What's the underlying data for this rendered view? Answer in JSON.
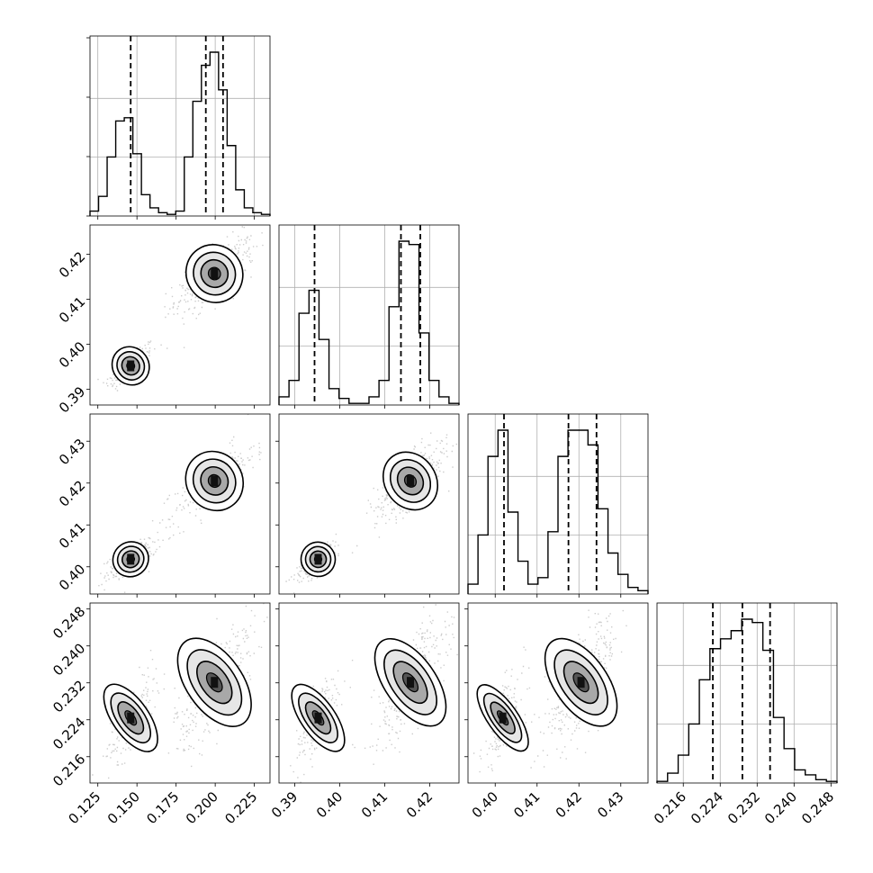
{
  "chart_data": {
    "type": "corner",
    "grid": true,
    "ticks": {
      "p1": [
        "0.125",
        "0.150",
        "0.175",
        "0.200",
        "0.225"
      ],
      "p2": [
        "0.39",
        "0.40",
        "0.41",
        "0.42"
      ],
      "p3": [
        "0.40",
        "0.41",
        "0.42",
        "0.43"
      ],
      "p4": [
        "0.216",
        "0.224",
        "0.232",
        "0.240",
        "0.248"
      ]
    },
    "parameters": [
      {
        "range": [
          0.12,
          0.235
        ],
        "tick_values": [
          0.125,
          0.15,
          0.175,
          0.2,
          0.225
        ],
        "quantiles": [
          0.146,
          0.194,
          0.205
        ],
        "histogram": [
          0.03,
          0.12,
          0.36,
          0.58,
          0.6,
          0.38,
          0.13,
          0.05,
          0.02,
          0.01,
          0.03,
          0.36,
          0.7,
          0.92,
          1.0,
          0.77,
          0.43,
          0.16,
          0.05,
          0.02,
          0.01
        ]
      },
      {
        "range": [
          0.3865,
          0.4265
        ],
        "tick_values": [
          0.39,
          0.4,
          0.41,
          0.42
        ],
        "quantiles": [
          0.3944,
          0.4136,
          0.4179
        ],
        "histogram": [
          0.05,
          0.15,
          0.56,
          0.7,
          0.4,
          0.1,
          0.04,
          0.01,
          0.01,
          0.05,
          0.15,
          0.6,
          1.0,
          0.98,
          0.44,
          0.15,
          0.05,
          0.01
        ]
      },
      {
        "range": [
          0.3935,
          0.4365
        ],
        "tick_values": [
          0.4,
          0.41,
          0.42,
          0.43
        ],
        "quantiles": [
          0.4021,
          0.4175,
          0.4242
        ],
        "histogram": [
          0.06,
          0.36,
          0.84,
          1.0,
          0.5,
          0.2,
          0.06,
          0.1,
          0.38,
          0.84,
          1.0,
          1.0,
          0.91,
          0.52,
          0.25,
          0.12,
          0.04,
          0.02
        ]
      },
      {
        "range": [
          0.2103,
          0.2493
        ],
        "tick_values": [
          0.216,
          0.224,
          0.232,
          0.24,
          0.248
        ],
        "quantiles": [
          0.2224,
          0.2288,
          0.2348
        ],
        "histogram": [
          0.01,
          0.06,
          0.17,
          0.36,
          0.63,
          0.82,
          0.88,
          0.93,
          1.0,
          0.98,
          0.81,
          0.4,
          0.21,
          0.08,
          0.05,
          0.02,
          0.01
        ]
      }
    ],
    "clusters": [
      {
        "center": [
          0.146,
          0.3952,
          0.4018,
          0.2244
        ],
        "sd": [
          0.0055,
          0.0018,
          0.0017,
          0.0035
        ],
        "weight": 0.33
      },
      {
        "center": [
          0.1995,
          0.4157,
          0.4205,
          0.2321
        ],
        "sd": [
          0.0085,
          0.0027,
          0.003,
          0.0045
        ],
        "weight": 0.67
      }
    ]
  }
}
